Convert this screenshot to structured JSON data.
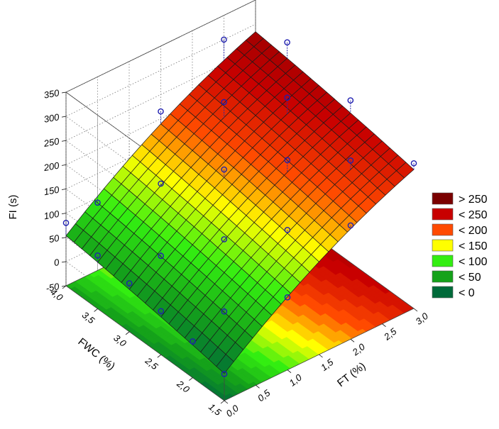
{
  "chart_data": {
    "type": "surface3d",
    "zlabel": "FI (s)",
    "xlabel": "FT (%)",
    "ylabel": "FWC (%)",
    "x_ticks": [
      "0,0",
      "0,5",
      "1,0",
      "1,5",
      "2,0",
      "2,5",
      "3,0"
    ],
    "y_ticks": [
      "1,5",
      "2,0",
      "2,5",
      "3,0",
      "3,5",
      "4,0"
    ],
    "z_ticks": [
      "-50",
      "0",
      "50",
      "100",
      "150",
      "200",
      "250",
      "300",
      "350"
    ],
    "xlim": [
      0,
      3
    ],
    "ylim": [
      1.5,
      4
    ],
    "zlim": [
      -50,
      350
    ],
    "grid": true,
    "legend_position": "right",
    "legend": [
      {
        "label": "> 250",
        "color": "#7a0000"
      },
      {
        "label": "< 250",
        "color": "#c80000"
      },
      {
        "label": "< 200",
        "color": "#ff4a00"
      },
      {
        "label": "< 150",
        "color": "#ffff00"
      },
      {
        "label": "< 100",
        "color": "#33ee11"
      },
      {
        "label": "< 50",
        "color": "#15a21a"
      },
      {
        "label": "< 0",
        "color": "#006a3a"
      }
    ],
    "observed_points": [
      {
        "ft": 0.0,
        "fwc": 1.5,
        "fi": 5
      },
      {
        "ft": 0.0,
        "fwc": 2.0,
        "fi": 25
      },
      {
        "ft": 0.0,
        "fwc": 2.5,
        "fi": 40
      },
      {
        "ft": 0.0,
        "fwc": 3.0,
        "fi": 50
      },
      {
        "ft": 0.0,
        "fwc": 3.5,
        "fi": 60
      },
      {
        "ft": 0.0,
        "fwc": 4.0,
        "fi": 80
      },
      {
        "ft": 0.5,
        "fwc": 2.0,
        "fi": 55
      },
      {
        "ft": 0.5,
        "fwc": 3.0,
        "fi": 75
      },
      {
        "ft": 0.5,
        "fwc": 4.0,
        "fi": 90
      },
      {
        "ft": 1.0,
        "fwc": 1.5,
        "fi": 100
      },
      {
        "ft": 1.0,
        "fwc": 2.5,
        "fi": 125
      },
      {
        "ft": 1.0,
        "fwc": 3.5,
        "fi": 145
      },
      {
        "ft": 1.5,
        "fwc": 2.0,
        "fi": 160
      },
      {
        "ft": 1.5,
        "fwc": 3.0,
        "fi": 190
      },
      {
        "ft": 1.5,
        "fwc": 4.0,
        "fi": 215
      },
      {
        "ft": 2.0,
        "fwc": 1.5,
        "fi": 185
      },
      {
        "ft": 2.0,
        "fwc": 2.5,
        "fi": 225
      },
      {
        "ft": 2.0,
        "fwc": 3.5,
        "fi": 250
      },
      {
        "ft": 2.5,
        "fwc": 2.0,
        "fi": 240
      },
      {
        "ft": 2.5,
        "fwc": 3.0,
        "fi": 275
      },
      {
        "ft": 2.5,
        "fwc": 4.0,
        "fi": 300
      },
      {
        "ft": 3.0,
        "fwc": 1.5,
        "fi": 250
      },
      {
        "ft": 3.0,
        "fwc": 2.5,
        "fi": 285
      },
      {
        "ft": 3.0,
        "fwc": 3.5,
        "fi": 310
      }
    ]
  }
}
